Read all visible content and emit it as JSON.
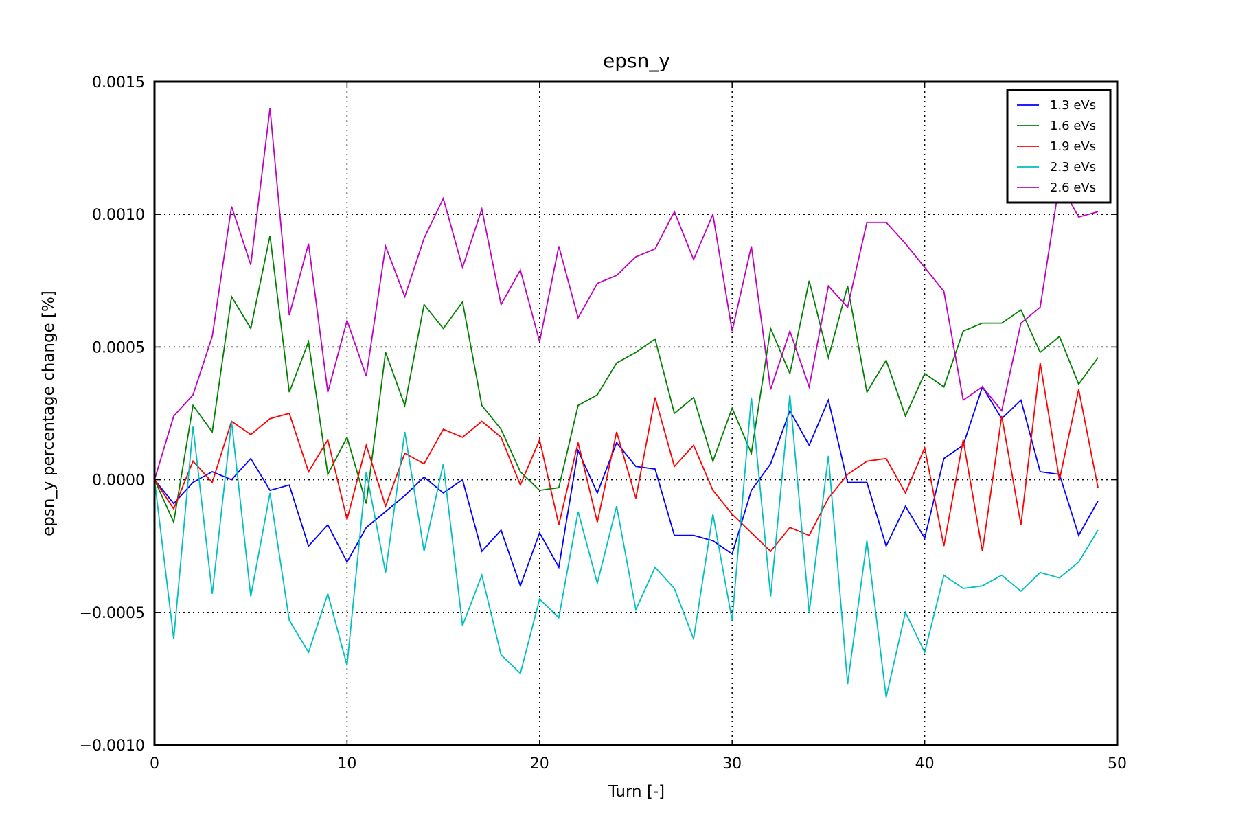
{
  "chart_data": {
    "type": "line",
    "title": "epsn_y",
    "xlabel": "Turn [-]",
    "ylabel": "epsn_y percentage change [%]",
    "xlim": [
      0,
      50
    ],
    "ylim": [
      -0.001,
      0.0015
    ],
    "xticks": [
      0,
      10,
      20,
      30,
      40,
      50
    ],
    "xtick_labels": [
      "0",
      "10",
      "20",
      "30",
      "40",
      "50"
    ],
    "yticks": [
      -0.001,
      -0.0005,
      0.0,
      0.0005,
      0.001,
      0.0015
    ],
    "ytick_labels": [
      "−0.0010",
      "−0.0005",
      "0.0000",
      "0.0005",
      "0.0010",
      "0.0015"
    ],
    "grid": true,
    "grid_style": "dotted",
    "legend_position": "top-right",
    "x": [
      0,
      1,
      2,
      3,
      4,
      5,
      6,
      7,
      8,
      9,
      10,
      11,
      12,
      13,
      14,
      15,
      16,
      17,
      18,
      19,
      20,
      21,
      22,
      23,
      24,
      25,
      26,
      27,
      28,
      29,
      30,
      31,
      32,
      33,
      34,
      35,
      36,
      37,
      38,
      39,
      40,
      41,
      42,
      43,
      44,
      45,
      46,
      47,
      48,
      49
    ],
    "series": [
      {
        "name": "1.3 eVs",
        "color": "#0000ff",
        "values": [
          0.0,
          -9e-05,
          -1e-05,
          3e-05,
          0.0,
          8e-05,
          -4e-05,
          -2e-05,
          -0.00025,
          -0.00017,
          -0.00031,
          -0.00018,
          -0.00012,
          -6e-05,
          1e-05,
          -5e-05,
          0.0,
          -0.00027,
          -0.00019,
          -0.0004,
          -0.0002,
          -0.00033,
          0.00011,
          -5e-05,
          0.00014,
          5e-05,
          4e-05,
          -0.00021,
          -0.00021,
          -0.00023,
          -0.00028,
          -4e-05,
          6e-05,
          0.00026,
          0.00013,
          0.0003,
          -1e-05,
          -1e-05,
          -0.00025,
          -0.0001,
          -0.00022,
          8e-05,
          0.00013,
          0.00035,
          0.00023,
          0.0003,
          3e-05,
          2e-05,
          -0.00021,
          -8e-05
        ]
      },
      {
        "name": "1.6 eVs",
        "color": "#008000",
        "values": [
          0.0,
          -0.00016,
          0.00028,
          0.00018,
          0.00069,
          0.00057,
          0.00092,
          0.00033,
          0.00052,
          2e-05,
          0.00016,
          -9e-05,
          0.00048,
          0.00028,
          0.00066,
          0.00057,
          0.00067,
          0.00028,
          0.00019,
          3e-05,
          -4e-05,
          -3e-05,
          0.00028,
          0.00032,
          0.00044,
          0.00048,
          0.00053,
          0.00025,
          0.00031,
          7e-05,
          0.00027,
          0.0001,
          0.00057,
          0.0004,
          0.00075,
          0.00046,
          0.00073,
          0.00033,
          0.00045,
          0.00024,
          0.0004,
          0.00035,
          0.00056,
          0.00059,
          0.00059,
          0.00064,
          0.00048,
          0.00054,
          0.00036,
          0.00046
        ]
      },
      {
        "name": "1.9 eVs",
        "color": "#ff0000",
        "values": [
          0.0,
          -0.00011,
          7e-05,
          -1e-05,
          0.00022,
          0.00017,
          0.00023,
          0.00025,
          3e-05,
          0.00015,
          -0.00015,
          0.00013,
          -0.0001,
          0.0001,
          6e-05,
          0.00019,
          0.00016,
          0.00022,
          0.00016,
          -2e-05,
          0.00015,
          -0.00017,
          0.00014,
          -0.00016,
          0.00018,
          -7e-05,
          0.00031,
          5e-05,
          0.00013,
          -4e-05,
          -0.00013,
          -0.0002,
          -0.00027,
          -0.00018,
          -0.00021,
          -7e-05,
          2e-05,
          7e-05,
          8e-05,
          -5e-05,
          0.00012,
          -0.00025,
          0.00015,
          -0.00027,
          0.00024,
          -0.00017,
          0.00044,
          0.0,
          0.00034,
          -3e-05
        ]
      },
      {
        "name": "2.3 eVs",
        "color": "#00bfbf",
        "values": [
          0.0,
          -0.0006,
          0.0002,
          -0.00043,
          0.00022,
          -0.00044,
          -5e-05,
          -0.00053,
          -0.00065,
          -0.00043,
          -0.0007,
          3e-05,
          -0.00035,
          0.00018,
          -0.00027,
          6e-05,
          -0.00055,
          -0.00036,
          -0.00066,
          -0.00073,
          -0.00045,
          -0.00052,
          -0.00012,
          -0.00039,
          -0.0001,
          -0.00049,
          -0.00033,
          -0.00041,
          -0.0006,
          -0.00013,
          -0.00053,
          0.00031,
          -0.00044,
          0.00032,
          -0.0005,
          9e-05,
          -0.00077,
          -0.00023,
          -0.00082,
          -0.0005,
          -0.00065,
          -0.00036,
          -0.00041,
          -0.0004,
          -0.00036,
          -0.00042,
          -0.00035,
          -0.00037,
          -0.00031,
          -0.00019
        ]
      },
      {
        "name": "2.6 eVs",
        "color": "#bf00bf",
        "values": [
          0.0,
          0.00024,
          0.00032,
          0.00054,
          0.00103,
          0.00081,
          0.0014,
          0.00062,
          0.00089,
          0.00033,
          0.0006,
          0.00039,
          0.00088,
          0.00069,
          0.00091,
          0.00106,
          0.0008,
          0.00102,
          0.00066,
          0.00079,
          0.00052,
          0.00088,
          0.00061,
          0.00074,
          0.00077,
          0.00084,
          0.00087,
          0.00101,
          0.00083,
          0.001,
          0.00056,
          0.00088,
          0.00034,
          0.00056,
          0.00035,
          0.00073,
          0.00065,
          0.00097,
          0.00097,
          0.00089,
          0.0008,
          0.00071,
          0.0003,
          0.00035,
          0.00026,
          0.00059,
          0.00065,
          0.00112,
          0.00099,
          0.00101
        ]
      }
    ]
  }
}
